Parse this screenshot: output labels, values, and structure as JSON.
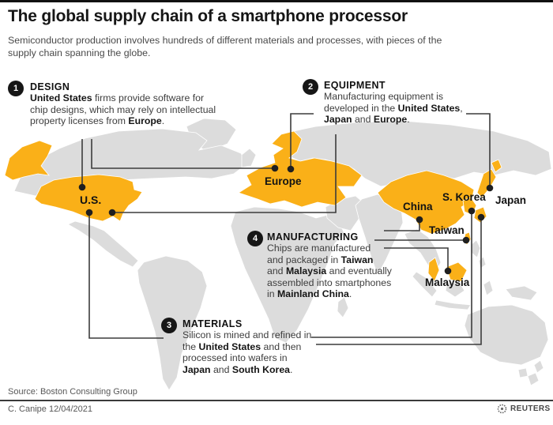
{
  "header": {
    "title": "The global supply chain of a smartphone processor",
    "subtitle": "Semiconductor production involves hundreds of different materials and processes, with pieces of the supply chain spanning the globe."
  },
  "callouts": [
    {
      "number": "1",
      "title": "DESIGN",
      "segments": [
        {
          "b": true,
          "t": "United States"
        },
        {
          "b": false,
          "t": " firms provide software for\nchip designs, which may rely on intellectual\nproperty licenses from "
        },
        {
          "b": true,
          "t": "Europe"
        },
        {
          "b": false,
          "t": "."
        }
      ]
    },
    {
      "number": "2",
      "title": "EQUIPMENT",
      "segments": [
        {
          "b": false,
          "t": "Manufacturing equipment is\ndeveloped in the "
        },
        {
          "b": true,
          "t": "United States"
        },
        {
          "b": false,
          "t": ",\n"
        },
        {
          "b": true,
          "t": "Japan"
        },
        {
          "b": false,
          "t": " and "
        },
        {
          "b": true,
          "t": "Europe"
        },
        {
          "b": false,
          "t": "."
        }
      ]
    },
    {
      "number": "3",
      "title": "MATERIALS",
      "segments": [
        {
          "b": false,
          "t": "Silicon is mined and refined in\nthe "
        },
        {
          "b": true,
          "t": "United States"
        },
        {
          "b": false,
          "t": " and then\nprocessed into wafers in\n"
        },
        {
          "b": true,
          "t": "Japan"
        },
        {
          "b": false,
          "t": " and "
        },
        {
          "b": true,
          "t": "South Korea"
        },
        {
          "b": false,
          "t": "."
        }
      ]
    },
    {
      "number": "4",
      "title": "MANUFACTURING",
      "segments": [
        {
          "b": false,
          "t": "Chips are manufactured\nand packaged in "
        },
        {
          "b": true,
          "t": "Taiwan"
        },
        {
          "b": false,
          "t": "\nand "
        },
        {
          "b": true,
          "t": "Malaysia"
        },
        {
          "b": false,
          "t": " and eventually\nassembled into smartphones\nin "
        },
        {
          "b": true,
          "t": "Mainland China"
        },
        {
          "b": false,
          "t": "."
        }
      ]
    }
  ],
  "map_labels": [
    {
      "text": "U.S."
    },
    {
      "text": "Europe"
    },
    {
      "text": "China"
    },
    {
      "text": "Taiwan"
    },
    {
      "text": "S. Korea"
    },
    {
      "text": "Japan"
    },
    {
      "text": "Malaysia"
    }
  ],
  "footer": {
    "source": "Source: Boston Consulting Group",
    "credit": "C. Canipe 12/04/2021",
    "agency": "REUTERS"
  },
  "colors": {
    "highlight": "#FAB018",
    "land": "#DCDCDC",
    "line": "#3C3C3C"
  }
}
